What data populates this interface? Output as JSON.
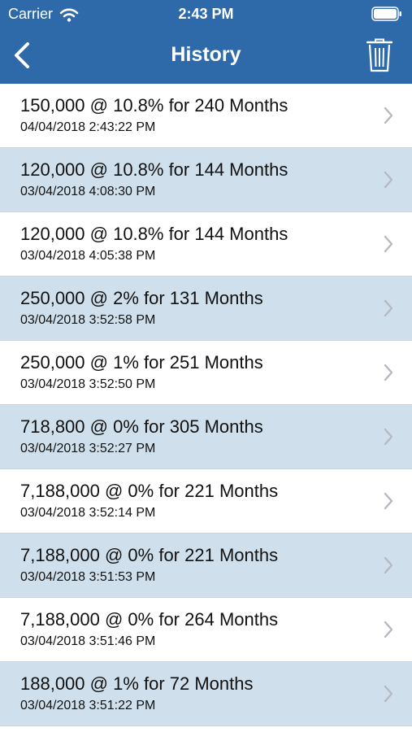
{
  "status_bar": {
    "carrier": "Carrier",
    "time": "2:43 PM"
  },
  "nav": {
    "title": "History",
    "back_icon": "chevron-left-icon",
    "trash_icon": "trash-icon"
  },
  "colors": {
    "nav_background": "#2e6aaa",
    "row_alt_background": "#cfe0ec",
    "row_background": "#ffffff"
  },
  "history": [
    {
      "title": "150,000 @ 10.8% for 240 Months",
      "timestamp": "04/04/2018 2:43:22 PM"
    },
    {
      "title": "120,000 @ 10.8% for 144 Months",
      "timestamp": "03/04/2018 4:08:30 PM"
    },
    {
      "title": "120,000 @ 10.8% for 144 Months",
      "timestamp": "03/04/2018 4:05:38 PM"
    },
    {
      "title": "250,000 @ 2% for 131 Months",
      "timestamp": "03/04/2018 3:52:58 PM"
    },
    {
      "title": "250,000 @ 1% for 251 Months",
      "timestamp": "03/04/2018 3:52:50 PM"
    },
    {
      "title": "718,800 @ 0% for 305 Months",
      "timestamp": "03/04/2018 3:52:27 PM"
    },
    {
      "title": "7,188,000 @ 0% for 221 Months",
      "timestamp": "03/04/2018 3:52:14 PM"
    },
    {
      "title": "7,188,000 @ 0% for 221 Months",
      "timestamp": "03/04/2018 3:51:53 PM"
    },
    {
      "title": "7,188,000 @ 0% for 264 Months",
      "timestamp": "03/04/2018 3:51:46 PM"
    },
    {
      "title": "188,000 @ 1% for 72 Months",
      "timestamp": "03/04/2018 3:51:22 PM"
    }
  ]
}
